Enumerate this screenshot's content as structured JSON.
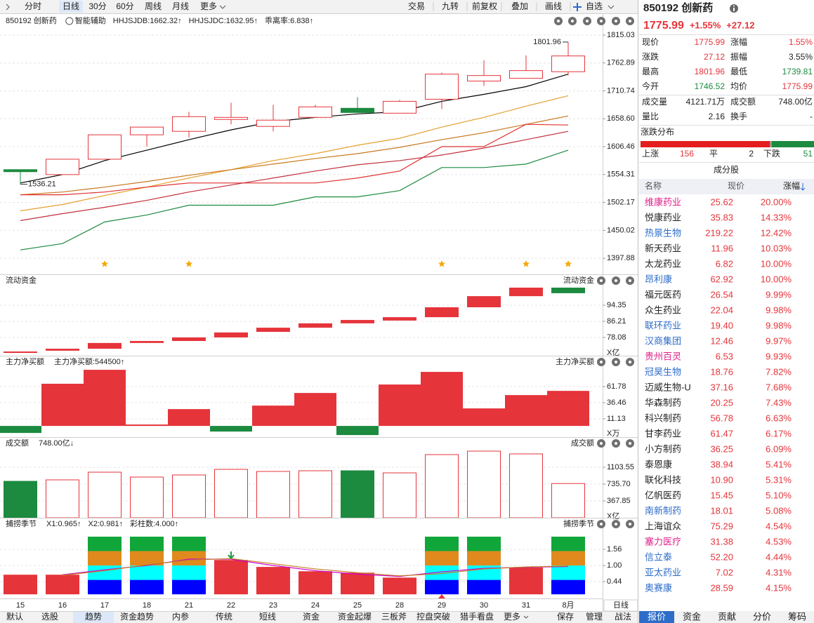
{
  "toolbar": {
    "periods": [
      "分时",
      "日线",
      "30分",
      "60分",
      "周线",
      "月线",
      "更多"
    ],
    "active": 1,
    "tools": [
      "交易",
      "九转",
      "前复权",
      "叠加",
      "画线",
      "自选"
    ]
  },
  "colors": {
    "up": "#e5343a",
    "down": "#1c8a3f"
  },
  "chart_data": [
    {
      "type": "candlestick",
      "title": "850192 创新药",
      "assist": "智能辅助",
      "indicators": [
        {
          "text": "HHJSJDB:1662.32↑",
          "color": "#d08a00"
        },
        {
          "text": "HHJSJDC:1632.95↑",
          "color": "#e03030"
        },
        {
          "text": "乖离率:6.838↑",
          "color": "#e07000"
        }
      ],
      "categories": [
        "15",
        "16",
        "17",
        "18",
        "21",
        "22",
        "23",
        "24",
        "25",
        "28",
        "29",
        "30",
        "31",
        "8月"
      ],
      "open": [
        1563.5,
        1554.3,
        1583.0,
        1628.6,
        1635.1,
        1657.3,
        1644.3,
        1661.2,
        1678.2,
        1669.0,
        1695.1,
        1729.0,
        1734.2,
        1746.52
      ],
      "high": [
        1563.5,
        1583.0,
        1628.6,
        1643.0,
        1671.6,
        1688.6,
        1684.7,
        1684.7,
        1699.0,
        1693.8,
        1744.6,
        1768.1,
        1777.2,
        1801.96
      ],
      "low": [
        1536.21,
        1554.3,
        1583.0,
        1606.5,
        1623.4,
        1648.2,
        1635.1,
        1661.2,
        1670.3,
        1669.0,
        1676.9,
        1719.9,
        1734.2,
        1739.81
      ],
      "close": [
        1559.6,
        1583.0,
        1628.6,
        1643.0,
        1662.5,
        1661.2,
        1656.0,
        1680.8,
        1670.3,
        1691.2,
        1742.0,
        1739.4,
        1748.6,
        1775.99
      ],
      "series": [
        {
          "color": "#000000",
          "values": [
            1538.6,
            1554.3,
            1580.4,
            1599.9,
            1619.5,
            1637.8,
            1653.4,
            1661.2,
            1667.7,
            1671.6,
            1691.2,
            1704.2,
            1718.6,
            1742.0
          ]
        },
        {
          "color": "#e6a030",
          "values": [
            1486.5,
            1498.3,
            1515.2,
            1530.9,
            1547.8,
            1563.5,
            1580.4,
            1593.4,
            1609.1,
            1622.1,
            1643.0,
            1661.2,
            1682.1,
            1701.6
          ]
        },
        {
          "color": "#c8781e",
          "values": [
            1516.5,
            1521.7,
            1530.9,
            1541.3,
            1553.0,
            1563.5,
            1573.9,
            1584.3,
            1593.4,
            1605.2,
            1619.5,
            1632.5,
            1648.2,
            1663.8
          ]
        },
        {
          "color": "#e03030",
          "values": [
            1516.5,
            1516.5,
            1521.7,
            1530.9,
            1538.6,
            1538.6,
            1538.6,
            1538.6,
            1547.8,
            1560.9,
            1606.5,
            1606.5,
            1648.2,
            1646.9
          ]
        },
        {
          "color": "#c0303a",
          "values": [
            1468.3,
            1481.3,
            1493.1,
            1506.1,
            1521.7,
            1534.8,
            1547.8,
            1560.9,
            1572.6,
            1580.4,
            1590.8,
            1603.9,
            1619.5,
            1635.1
          ]
        },
        {
          "color": "#1c8a3f",
          "values": [
            1413.5,
            1425.3,
            1465.7,
            1478.7,
            1497.0,
            1497.0,
            1497.0,
            1512.6,
            1512.6,
            1524.3,
            1567.4,
            1567.4,
            1573.9,
            1599.9
          ]
        }
      ],
      "annotations": [
        {
          "value": 1801.96,
          "label": "1801.96"
        },
        {
          "value": 1536.21,
          "label": "1536.21"
        }
      ],
      "ylim": [
        1371.8,
        1828.1
      ],
      "yticks": [
        1815.03,
        1762.89,
        1710.74,
        {
          "value": 1658.6,
          "label": "1658.60"
        },
        1606.46,
        1554.31,
        1502.17,
        1450.02,
        1397.88
      ]
    },
    {
      "type": "waterfall",
      "title": "流动资金",
      "unit": "X亿",
      "start": [
        70.3,
        71.4,
        72.4,
        75.3,
        76.3,
        78.1,
        80.9,
        83.0,
        85.2,
        86.6,
        88.3,
        93.3,
        98.9,
        103.2
      ],
      "end": [
        71.0,
        72.4,
        75.3,
        76.3,
        78.1,
        80.6,
        83.0,
        85.2,
        86.9,
        88.3,
        93.3,
        98.9,
        103.2,
        100.4
      ],
      "ylim": [
        69.59,
        104.96
      ],
      "yticks": [
        94.35,
        86.21,
        78.08
      ]
    },
    {
      "type": "bar",
      "title": "主力净买额",
      "unit": "X万",
      "indicators": [
        {
          "text": "主力净买额:544500↑",
          "color": "#e03030"
        }
      ],
      "values": [
        -11.0,
        66.2,
        88.1,
        2.2,
        26.4,
        -8.8,
        31.9,
        51.7,
        -14.3,
        65.0,
        84.8,
        27.5,
        48.4,
        55.0
      ],
      "ylim": [
        -14.19,
        93.7
      ],
      "yticks": [
        61.78,
        36.46,
        11.13
      ]
    },
    {
      "type": "volume",
      "title": "成交额",
      "unit": "X亿",
      "indicators": [
        {
          "text": "748.00亿↓",
          "color": "#222222"
        }
      ],
      "values": [
        797,
        828,
        996,
        889,
        935,
        1058,
        1012,
        1027,
        1027,
        981,
        1380,
        1456,
        1395,
        748
      ],
      "ylim": [
        0,
        1502.1
      ],
      "yticks": [
        1103.55,
        {
          "value": 735.7,
          "label": "735.70"
        },
        367.85
      ]
    },
    {
      "type": "indicator",
      "title": "捕捞季节",
      "indicators": [
        {
          "text": "X1:0.965↑",
          "color": "#e03030"
        },
        {
          "text": "X2:0.981↑",
          "color": "#d000d0"
        },
        {
          "text": "彩柱数:4.000↑",
          "color": "#e03030"
        }
      ],
      "values": [
        0.68,
        0.68,
        null,
        null,
        null,
        1.19,
        0.95,
        0.8,
        0.75,
        0.58,
        null,
        null,
        0.93,
        null
      ],
      "bands": [
        {
          "color": "#0000ff",
          "values": [
            null,
            null,
            0.5,
            0.5,
            0.5,
            null,
            null,
            null,
            null,
            null,
            0.5,
            0.5,
            null,
            0.5
          ]
        },
        {
          "color": "#00ffff",
          "values": [
            null,
            null,
            0.5,
            0.5,
            0.5,
            null,
            null,
            null,
            null,
            null,
            0.5,
            0.5,
            null,
            0.5
          ]
        },
        {
          "color": "#e08a1e",
          "values": [
            null,
            null,
            0.5,
            0.5,
            0.5,
            null,
            null,
            null,
            null,
            null,
            0.5,
            0.5,
            null,
            0.5
          ]
        },
        {
          "color": "#10a63a",
          "values": [
            null,
            null,
            0.5,
            0.5,
            0.5,
            null,
            null,
            null,
            null,
            null,
            0.5,
            0.5,
            null,
            0.5
          ]
        }
      ],
      "lines": [
        {
          "color": "#d000d0",
          "values": [
            null,
            0.68,
            0.85,
            1.0,
            1.22,
            1.22,
            1.0,
            0.82,
            0.7,
            0.62,
            0.78,
            0.9,
            0.94,
            0.965
          ]
        },
        {
          "color": "#c08020",
          "values": [
            null,
            0.66,
            0.82,
            1.02,
            1.19,
            1.24,
            1.06,
            0.88,
            0.75,
            0.64,
            0.72,
            0.88,
            0.95,
            0.981
          ]
        }
      ],
      "ylim": [
        -0.07,
        2.12
      ],
      "yticks": [
        1.56,
        {
          "value": 1,
          "label": "1.00"
        },
        0.44
      ]
    }
  ],
  "period_label": "日线",
  "bottom_tabs": {
    "items": [
      "默认",
      "选股",
      "趋势",
      "资金趋势",
      "内参",
      "传统",
      "短线",
      "资金",
      "资金起爆",
      "三板斧",
      "控盘突破",
      "猎手看盘",
      "更多"
    ],
    "active": 2,
    "right": [
      "保存",
      "管理",
      "战法"
    ]
  },
  "quote": {
    "name": "850192 创新药",
    "price": "1775.99",
    "change_pct": "+1.55%",
    "change": "+27.12",
    "fields": [
      {
        "label": "现价",
        "value": "1775.99",
        "color": "#e5343a"
      },
      {
        "label": "涨幅",
        "value": "1.55%",
        "color": "#e5343a"
      },
      {
        "label": "涨跌",
        "value": "27.12",
        "color": "#e5343a"
      },
      {
        "label": "振幅",
        "value": "3.55%",
        "color": "#222222"
      },
      {
        "label": "最高",
        "value": "1801.96",
        "color": "#e5343a"
      },
      {
        "label": "最低",
        "value": "1739.81",
        "color": "#1c8a3f"
      },
      {
        "label": "今开",
        "value": "1746.52",
        "color": "#1c8a3f"
      },
      {
        "label": "均价",
        "value": "1775.99",
        "color": "#e5343a"
      },
      {
        "label": "成交量",
        "value": "4121.71万",
        "color": "#222222"
      },
      {
        "label": "成交额",
        "value": "748.00亿",
        "color": "#222222"
      },
      {
        "label": "量比",
        "value": "2.16",
        "color": "#222222"
      },
      {
        "label": "换手",
        "value": "-",
        "color": "#222222"
      }
    ]
  },
  "distribution": {
    "title": "涨跌分布",
    "up_label": "上涨",
    "up": 156,
    "flat_label": "平",
    "flat": 2,
    "down_label": "下跌",
    "down": 51
  },
  "constituents": {
    "title": "成分股",
    "columns": [
      "名称",
      "现价",
      "涨幅"
    ],
    "rows": [
      {
        "name": "维康药业",
        "price": "25.62",
        "pct": "20.00%",
        "name_color": "#e0208a"
      },
      {
        "name": "悦康药业",
        "price": "35.83",
        "pct": "14.33%",
        "name_color": "#222222"
      },
      {
        "name": "热景生物",
        "price": "219.22",
        "pct": "12.42%",
        "name_color": "#2d6cc8"
      },
      {
        "name": "新天药业",
        "price": "11.96",
        "pct": "10.03%",
        "name_color": "#222222"
      },
      {
        "name": "太龙药业",
        "price": "6.82",
        "pct": "10.00%",
        "name_color": "#222222"
      },
      {
        "name": "昂利康",
        "price": "62.92",
        "pct": "10.00%",
        "name_color": "#2d6cc8"
      },
      {
        "name": "福元医药",
        "price": "26.54",
        "pct": "9.99%",
        "name_color": "#222222"
      },
      {
        "name": "众生药业",
        "price": "22.04",
        "pct": "9.98%",
        "name_color": "#222222"
      },
      {
        "name": "联环药业",
        "price": "19.40",
        "pct": "9.98%",
        "name_color": "#2d6cc8"
      },
      {
        "name": "汉商集团",
        "price": "12.46",
        "pct": "9.97%",
        "name_color": "#2d6cc8"
      },
      {
        "name": "贵州百灵",
        "price": "6.53",
        "pct": "9.93%",
        "name_color": "#e0208a"
      },
      {
        "name": "冠昊生物",
        "price": "18.76",
        "pct": "7.82%",
        "name_color": "#2d6cc8"
      },
      {
        "name": "迈威生物-U",
        "price": "37.16",
        "pct": "7.68%",
        "name_color": "#222222"
      },
      {
        "name": "华森制药",
        "price": "20.25",
        "pct": "7.43%",
        "name_color": "#222222"
      },
      {
        "name": "科兴制药",
        "price": "56.78",
        "pct": "6.63%",
        "name_color": "#222222"
      },
      {
        "name": "甘李药业",
        "price": "61.47",
        "pct": "6.17%",
        "name_color": "#222222"
      },
      {
        "name": "小方制药",
        "price": "36.25",
        "pct": "6.09%",
        "name_color": "#222222"
      },
      {
        "name": "泰恩康",
        "price": "38.94",
        "pct": "5.41%",
        "name_color": "#222222"
      },
      {
        "name": "联化科技",
        "price": "10.90",
        "pct": "5.31%",
        "name_color": "#222222"
      },
      {
        "name": "亿帆医药",
        "price": "15.45",
        "pct": "5.10%",
        "name_color": "#222222"
      },
      {
        "name": "南新制药",
        "price": "18.01",
        "pct": "5.08%",
        "name_color": "#2d6cc8"
      },
      {
        "name": "上海谊众",
        "price": "75.29",
        "pct": "4.54%",
        "name_color": "#222222"
      },
      {
        "name": "塞力医疗",
        "price": "31.38",
        "pct": "4.53%",
        "name_color": "#e0208a"
      },
      {
        "name": "信立泰",
        "price": "52.20",
        "pct": "4.44%",
        "name_color": "#2d6cc8"
      },
      {
        "name": "亚太药业",
        "price": "7.02",
        "pct": "4.31%",
        "name_color": "#2d6cc8"
      },
      {
        "name": "奥赛康",
        "price": "28.59",
        "pct": "4.15%",
        "name_color": "#2d6cc8"
      }
    ]
  },
  "side_tabs": {
    "items": [
      "报价",
      "资金",
      "贡献",
      "分价",
      "筹码"
    ],
    "active": 0
  }
}
